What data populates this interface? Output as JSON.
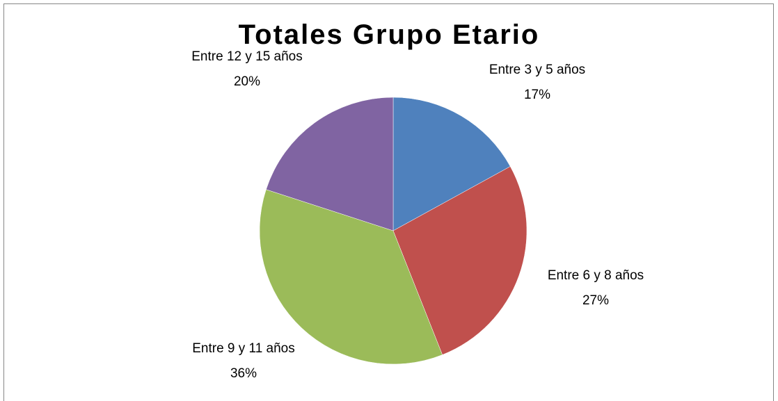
{
  "chart_data": {
    "type": "pie",
    "title": "Totales Grupo Etario",
    "categories": [
      "Entre 3 y 5 años",
      "Entre 6 y 8 años",
      "Entre 9 y 11 años",
      "Entre 12 y 15 años"
    ],
    "values": [
      17,
      27,
      36,
      20
    ],
    "value_labels": [
      "17%",
      "27%",
      "36%",
      "20%"
    ],
    "colors": [
      "#4f81bd",
      "#c0504d",
      "#9bbb59",
      "#8064a2"
    ]
  }
}
